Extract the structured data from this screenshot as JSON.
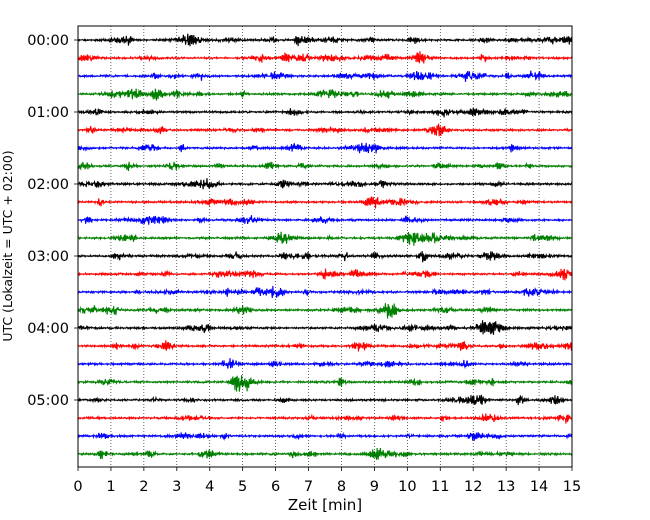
{
  "chart_data": {
    "type": "line",
    "xlabel": "Zeit  [min]",
    "ylabel": "UTC (Lokalzeit = UTC + 02:00)",
    "xlim": [
      0,
      15
    ],
    "x_ticks": [
      "0",
      "1",
      "2",
      "3",
      "4",
      "5",
      "6",
      "7",
      "8",
      "9",
      "10",
      "11",
      "12",
      "13",
      "14",
      "15"
    ],
    "y_tick_labels": [
      "00:00",
      "01:00",
      "02:00",
      "03:00",
      "04:00",
      "05:00"
    ],
    "row_interval_minutes": 15,
    "row_count": 24,
    "row_start_times": [
      "00:00",
      "00:15",
      "00:30",
      "00:45",
      "01:00",
      "01:15",
      "01:30",
      "01:45",
      "02:00",
      "02:15",
      "02:30",
      "02:45",
      "03:00",
      "03:15",
      "03:30",
      "03:45",
      "04:00",
      "04:15",
      "04:30",
      "04:45",
      "05:00",
      "05:15",
      "05:30",
      "05:45"
    ],
    "row_colors": [
      "#000000",
      "#ff0000",
      "#0000ff",
      "#008000"
    ],
    "grid": "vertical dotted at each minute",
    "notes_on_data": "Seismogram-style helicorder; each row is a 15-minute trace of small-amplitude oscillation."
  }
}
